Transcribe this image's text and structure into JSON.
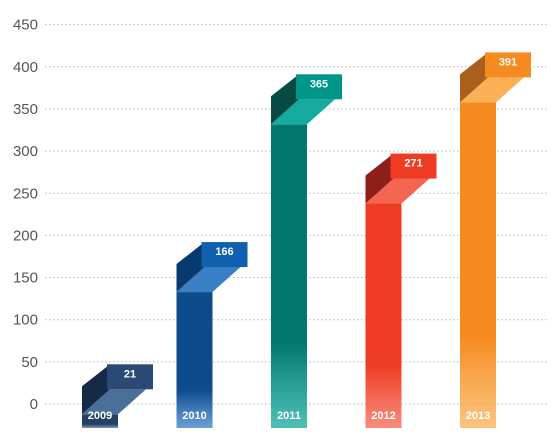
{
  "chart_data": {
    "type": "bar",
    "categories": [
      "2009",
      "2010",
      "2011",
      "2012",
      "2013"
    ],
    "values": [
      21,
      166,
      365,
      271,
      391
    ],
    "title": "",
    "xlabel": "",
    "ylabel": "",
    "ylim": [
      0,
      450
    ],
    "yticks": [
      0,
      50,
      100,
      150,
      200,
      250,
      300,
      350,
      400,
      450
    ],
    "grid": true,
    "legend": "none",
    "colors": [
      {
        "front": "#233f63",
        "light": "#4a6f9a",
        "dark": "#142a47",
        "tag": "#2a4a74"
      },
      {
        "front": "#0e4b8c",
        "light": "#3a7fc6",
        "dark": "#083a70",
        "tag": "#1160b0"
      },
      {
        "front": "#00786e",
        "light": "#14aa9d",
        "dark": "#064a43",
        "tag": "#00958a"
      },
      {
        "front": "#ee3b24",
        "light": "#f4664f",
        "dark": "#8e1e1a",
        "tag": "#ee3b24"
      },
      {
        "front": "#f58b1f",
        "light": "#fbb056",
        "dark": "#a9601d",
        "tag": "#f58b1f"
      }
    ]
  }
}
